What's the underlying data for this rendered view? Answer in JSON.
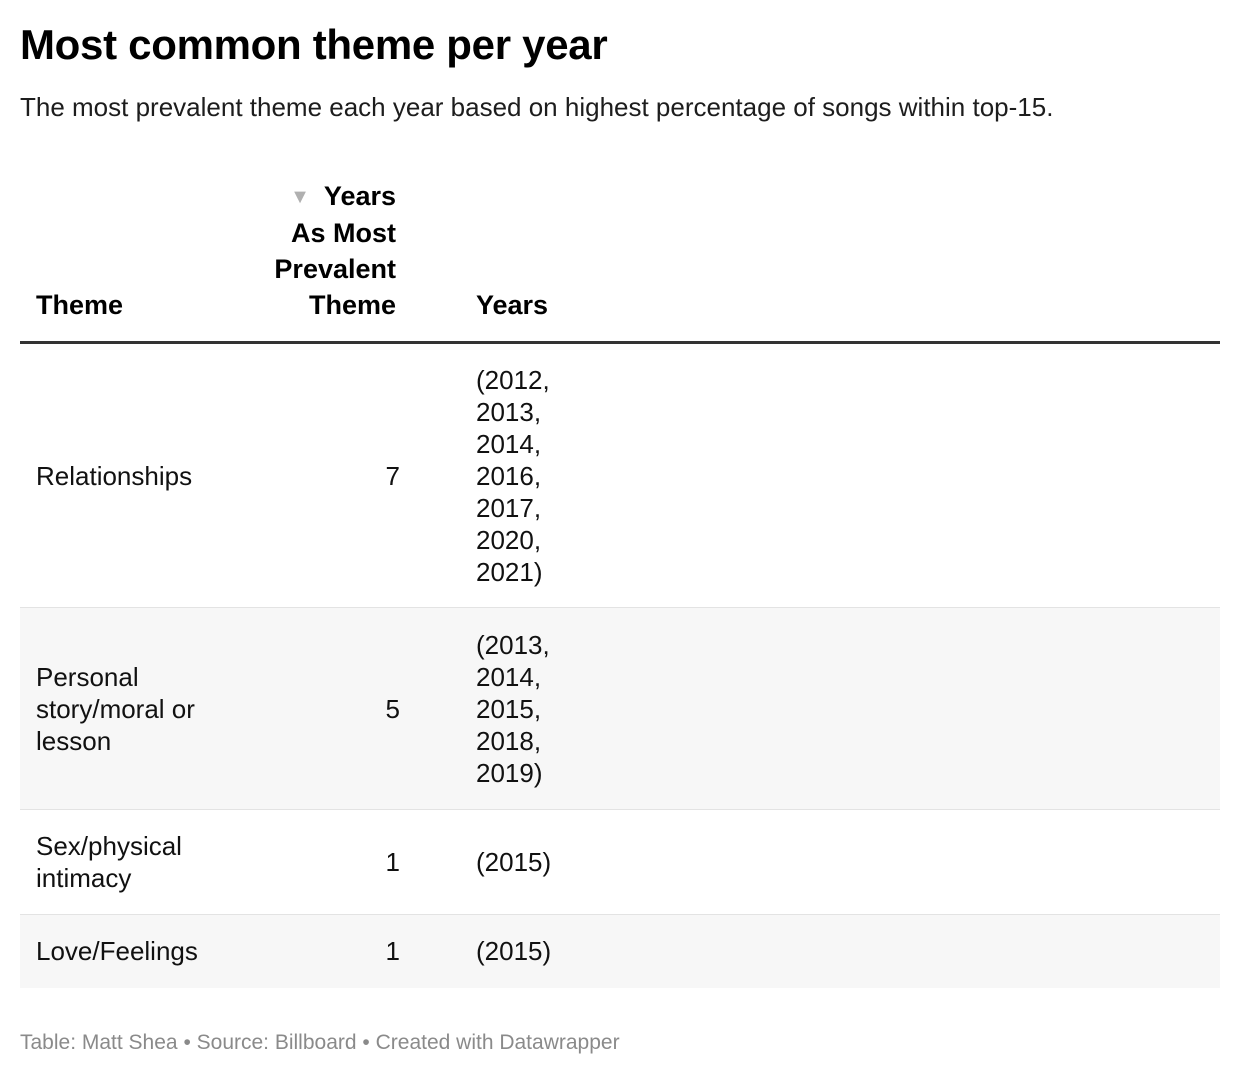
{
  "title": "Most common theme per year",
  "subtitle": "The most prevalent theme each year based on highest percentage of songs within top-15.",
  "footer": {
    "credit": "Table: Matt Shea",
    "separator": "•",
    "source": "Source: Billboard",
    "tool": "Created with Datawrapper"
  },
  "table": {
    "headers": {
      "theme": "Theme",
      "count": "Years As Most Prevalent Theme",
      "years": "Years"
    },
    "sort_icon": "sort-descending-triangle"
  },
  "chart_data": {
    "type": "table",
    "columns": [
      "Theme",
      "Years As Most Prevalent Theme",
      "Years"
    ],
    "sort": {
      "column": "Years As Most Prevalent Theme",
      "order": "descending"
    },
    "rows": [
      {
        "theme": "Relationships",
        "count": 7,
        "years": "(2012, 2013, 2014, 2016, 2017, 2020, 2021)"
      },
      {
        "theme": "Personal story/moral or lesson",
        "count": 5,
        "years": "(2013, 2014, 2015, 2018, 2019)"
      },
      {
        "theme": "Sex/physical intimacy",
        "count": 1,
        "years": "(2015)"
      },
      {
        "theme": "Love/Feelings",
        "count": 1,
        "years": "(2015)"
      }
    ]
  },
  "colors": {
    "header_rule": "#333333",
    "row_stripe": "#f7f7f7",
    "row_divider": "#e3e3e3",
    "footer_text": "#8a8a8a",
    "sort_icon": "#b0b0b0"
  }
}
